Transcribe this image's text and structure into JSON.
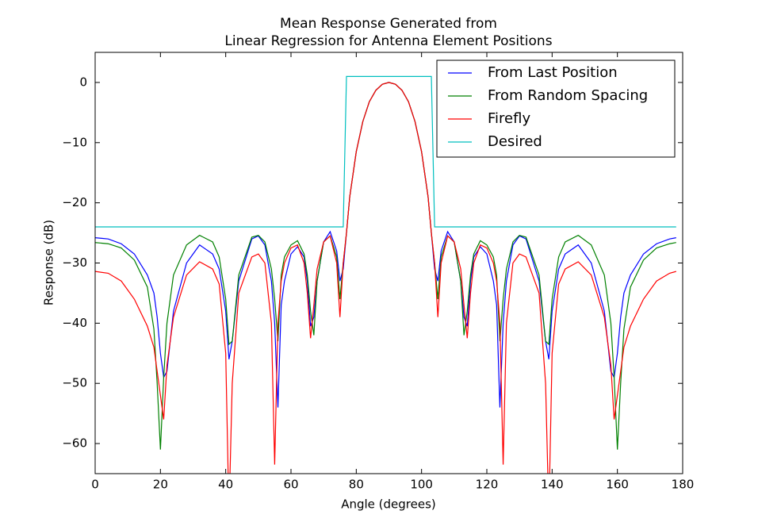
{
  "chart_data": {
    "type": "line",
    "title": [
      "Mean Response Generated from",
      "Linear Regression for Antenna Element Positions"
    ],
    "xlabel": "Angle (degrees)",
    "ylabel": "Response (dB)",
    "xlim": [
      0,
      180
    ],
    "ylim": [
      -65,
      5
    ],
    "xticks": [
      0,
      20,
      40,
      60,
      80,
      100,
      120,
      140,
      160,
      180
    ],
    "yticks": [
      {
        "value": -60,
        "label": "−60"
      },
      {
        "value": -50,
        "label": "−50"
      },
      {
        "value": -40,
        "label": "−40"
      },
      {
        "value": -30,
        "label": "−30"
      },
      {
        "value": -20,
        "label": "−20"
      },
      {
        "value": -10,
        "label": "−10"
      },
      0
    ],
    "legend": "upper right",
    "grid": false,
    "x": [
      0,
      4,
      8,
      12,
      16,
      18,
      19,
      20,
      21,
      22,
      24,
      28,
      32,
      36,
      38,
      40,
      41,
      42,
      44,
      48,
      50,
      52,
      54,
      55,
      56,
      57,
      58,
      60,
      62,
      64,
      65,
      66,
      67,
      68,
      70,
      72,
      74,
      75,
      76,
      77,
      78,
      80,
      82,
      84,
      86,
      88,
      90,
      92,
      94,
      96,
      98,
      100,
      102,
      103,
      104,
      105,
      106,
      108,
      110,
      112,
      113,
      114,
      115,
      116,
      118,
      120,
      122,
      123,
      124,
      125,
      126,
      128,
      130,
      132,
      136,
      138,
      139,
      140,
      142,
      144,
      148,
      152,
      156,
      158,
      159,
      160,
      161,
      162,
      164,
      168,
      172,
      176,
      178
    ],
    "series": [
      {
        "name": "From Last Position",
        "color": "#0000ff",
        "values": [
          -25.8,
          -26,
          -26.8,
          -28.5,
          -32,
          -35,
          -39,
          -45,
          -49,
          -48,
          -38,
          -30,
          -27,
          -28.5,
          -31,
          -38,
          -46,
          -43,
          -33,
          -26,
          -25.5,
          -27,
          -33,
          -40,
          -54,
          -37,
          -33,
          -28.5,
          -27.3,
          -29,
          -33,
          -40.5,
          -39,
          -33,
          -26.5,
          -24.8,
          -28,
          -33,
          -31,
          -25,
          -19,
          -11.5,
          -6.5,
          -3.2,
          -1.3,
          -0.3,
          0,
          -0.3,
          -1.3,
          -3.2,
          -6.5,
          -11.5,
          -19,
          -25,
          -31,
          -33,
          -28,
          -24.8,
          -26.5,
          -33,
          -39,
          -40.5,
          -33,
          -29,
          -27.3,
          -28.5,
          -33,
          -37,
          -54,
          -40,
          -33,
          -27,
          -25.5,
          -26,
          -33,
          -43,
          -46,
          -38,
          -31,
          -28.5,
          -27,
          -30,
          -38,
          -48,
          -49,
          -45,
          -39,
          -35,
          -32,
          -28.5,
          -26.8,
          -26,
          -25.8
        ]
      },
      {
        "name": "From Random Spacing",
        "color": "#008000",
        "values": [
          -26.6,
          -26.8,
          -27.5,
          -29.5,
          -34,
          -41,
          -50,
          -61,
          -49,
          -40,
          -32,
          -27,
          -25.4,
          -26.5,
          -29,
          -36,
          -43.5,
          -43,
          -32,
          -25.7,
          -25.4,
          -26.5,
          -31,
          -36,
          -43,
          -32,
          -29,
          -27,
          -26.3,
          -28.5,
          -32,
          -38,
          -42,
          -33,
          -26.5,
          -25.5,
          -29,
          -36,
          -30,
          -25,
          -19,
          -11.5,
          -6.5,
          -3.2,
          -1.3,
          -0.3,
          0,
          -0.3,
          -1.3,
          -3.2,
          -6.5,
          -11.5,
          -19,
          -25,
          -30,
          -36,
          -29,
          -25.5,
          -26.5,
          -33,
          -42,
          -38,
          -32,
          -28.5,
          -26.3,
          -27,
          -29,
          -32,
          -43,
          -36,
          -31,
          -26.5,
          -25.4,
          -25.7,
          -32,
          -43,
          -43.5,
          -36,
          -29,
          -26.5,
          -25.4,
          -27,
          -32,
          -40,
          -49,
          -61,
          -50,
          -41,
          -34,
          -29.5,
          -27.5,
          -26.8,
          -26.6
        ]
      },
      {
        "name": "Firefly",
        "color": "#ff0000",
        "values": [
          -31.4,
          -31.7,
          -33,
          -36,
          -40.5,
          -44,
          -48,
          -52,
          -56,
          -47,
          -39,
          -32,
          -29.8,
          -31,
          -33.5,
          -45,
          -72,
          -50,
          -35,
          -29,
          -28.5,
          -30,
          -40,
          -63.5,
          -40,
          -33,
          -30,
          -27.5,
          -27,
          -30,
          -35,
          -42.5,
          -37,
          -31,
          -26.5,
          -25.5,
          -30,
          -39,
          -30,
          -25,
          -19,
          -11.5,
          -6.5,
          -3.2,
          -1.3,
          -0.3,
          0,
          -0.3,
          -1.3,
          -3.2,
          -6.5,
          -11.5,
          -19,
          -25,
          -30,
          -39,
          -30,
          -25.5,
          -26.5,
          -31,
          -37,
          -42.5,
          -35,
          -30,
          -27,
          -27.5,
          -30,
          -33,
          -40,
          -63.5,
          -40,
          -30,
          -28.5,
          -29,
          -35,
          -50,
          -72,
          -45,
          -33.5,
          -31,
          -29.8,
          -32,
          -39,
          -47,
          -56,
          -52,
          -48,
          -44,
          -40.5,
          -36,
          -33,
          -31.7,
          -31.4
        ]
      },
      {
        "name": "Desired",
        "color": "#00bfbf",
        "values": [
          -24,
          -24,
          -24,
          -24,
          -24,
          -24,
          -24,
          -24,
          -24,
          -24,
          -24,
          -24,
          -24,
          -24,
          -24,
          -24,
          -24,
          -24,
          -24,
          -24,
          -24,
          -24,
          -24,
          -24,
          -24,
          -24,
          -24,
          -24,
          -24,
          -24,
          -24,
          -24,
          -24,
          -24,
          -24,
          -24,
          -24,
          -24,
          -24,
          1,
          1,
          1,
          1,
          1,
          1,
          1,
          1,
          1,
          1,
          1,
          1,
          1,
          1,
          1,
          -24,
          -24,
          -24,
          -24,
          -24,
          -24,
          -24,
          -24,
          -24,
          -24,
          -24,
          -24,
          -24,
          -24,
          -24,
          -24,
          -24,
          -24,
          -24,
          -24,
          -24,
          -24,
          -24,
          -24,
          -24,
          -24,
          -24,
          -24,
          -24,
          -24,
          -24,
          -24,
          -24,
          -24,
          -24,
          -24,
          -24,
          -24,
          -24
        ]
      }
    ]
  }
}
